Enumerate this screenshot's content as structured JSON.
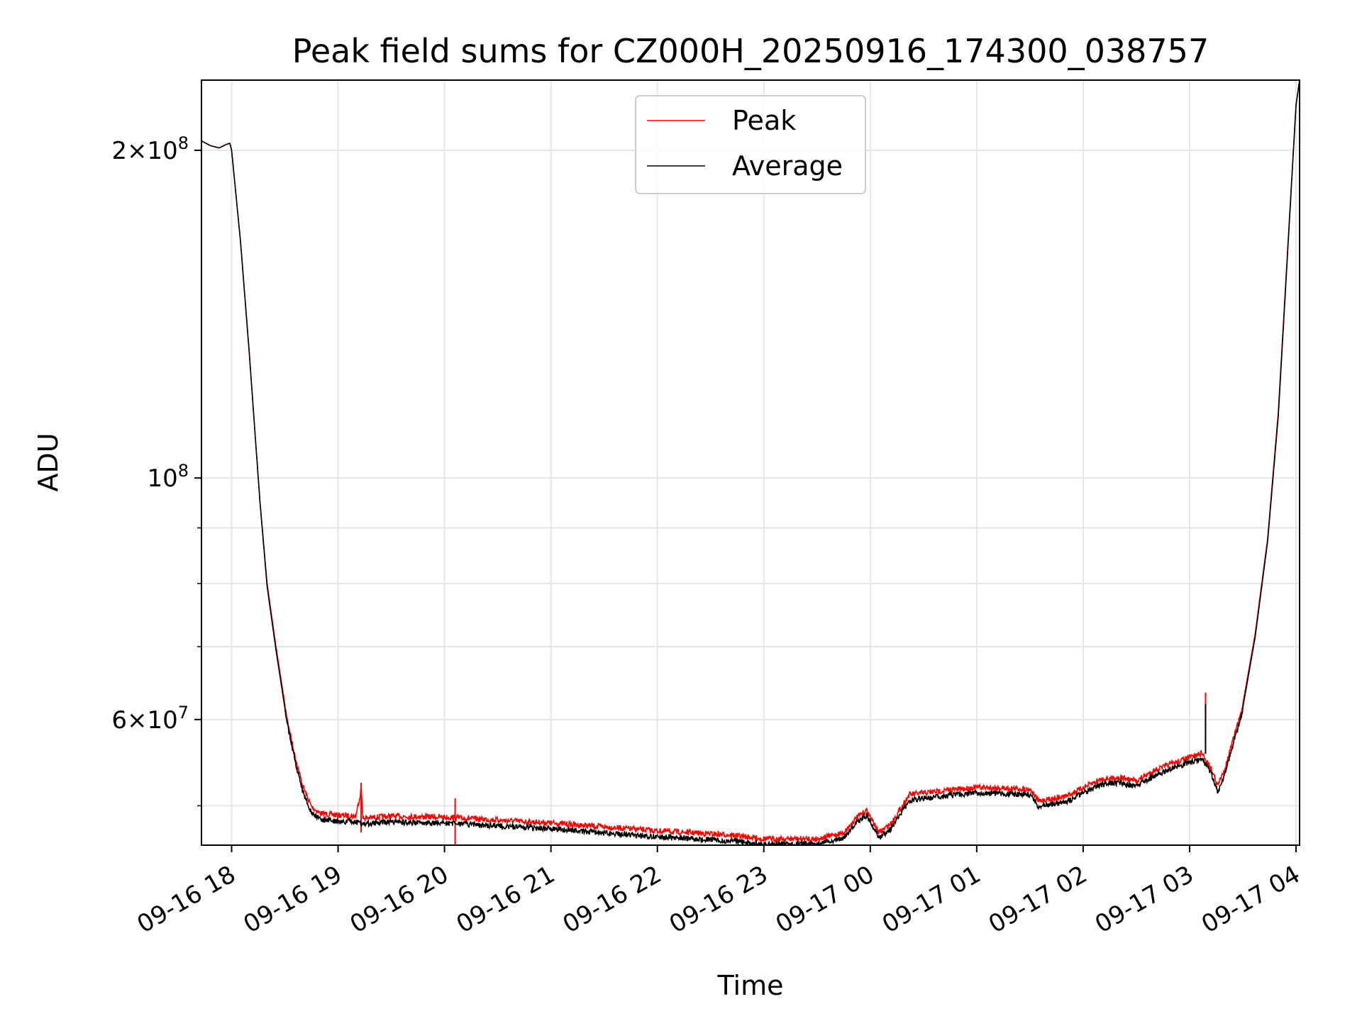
{
  "chart_data": {
    "type": "line",
    "title": "Peak field sums for CZ000H_20250916_174300_038757",
    "xlabel": "Time",
    "ylabel": "ADU",
    "yscale": "log",
    "ylim": [
      46000000,
      232000000
    ],
    "xlim": [
      "2025-09-16 17:43",
      "2025-09-17 04:02"
    ],
    "grid": true,
    "legend_position": "top-center",
    "x_ticks": [
      {
        "t": "2025-09-16 18:00",
        "label": "09-16 18"
      },
      {
        "t": "2025-09-16 19:00",
        "label": "09-16 19"
      },
      {
        "t": "2025-09-16 20:00",
        "label": "09-16 20"
      },
      {
        "t": "2025-09-16 21:00",
        "label": "09-16 21"
      },
      {
        "t": "2025-09-16 22:00",
        "label": "09-16 22"
      },
      {
        "t": "2025-09-16 23:00",
        "label": "09-16 23"
      },
      {
        "t": "2025-09-17 00:00",
        "label": "09-17 00"
      },
      {
        "t": "2025-09-17 01:00",
        "label": "09-17 01"
      },
      {
        "t": "2025-09-17 02:00",
        "label": "09-17 02"
      },
      {
        "t": "2025-09-17 03:00",
        "label": "09-17 03"
      },
      {
        "t": "2025-09-17 04:00",
        "label": "09-17 04"
      }
    ],
    "y_major_ticks": [
      {
        "value": 60000000,
        "mantissa": "6",
        "exponent": "7"
      },
      {
        "value": 100000000,
        "mantissa": "",
        "exponent": "8"
      },
      {
        "value": 200000000,
        "mantissa": "2",
        "exponent": "8"
      }
    ],
    "y_minor_ticks": [
      50000000,
      70000000,
      80000000,
      90000000
    ],
    "series": [
      {
        "name": "Peak",
        "color": "#ff0000",
        "noise": 0.012,
        "points": [
          [
            "2025-09-16 17:43",
            204000000
          ],
          [
            "2025-09-16 17:48",
            202000000
          ],
          [
            "2025-09-16 17:53",
            201000000
          ],
          [
            "2025-09-16 17:57",
            202500000
          ],
          [
            "2025-09-16 17:59",
            203000000
          ],
          [
            "2025-09-16 18:00",
            200000000
          ],
          [
            "2025-09-16 18:05",
            165000000
          ],
          [
            "2025-09-16 18:10",
            130000000
          ],
          [
            "2025-09-16 18:15",
            100000000
          ],
          [
            "2025-09-16 18:16",
            95000000
          ],
          [
            "2025-09-16 18:20",
            80000000
          ],
          [
            "2025-09-16 18:25",
            70000000
          ],
          [
            "2025-09-16 18:30",
            62000000
          ],
          [
            "2025-09-16 18:35",
            56500000
          ],
          [
            "2025-09-16 18:40",
            52500000
          ],
          [
            "2025-09-16 18:45",
            50200000
          ],
          [
            "2025-09-16 18:50",
            49500000
          ],
          [
            "2025-09-16 19:00",
            49300000
          ],
          [
            "2025-09-16 19:10",
            49200000
          ],
          [
            "2025-09-16 19:13",
            52000000
          ],
          [
            "2025-09-16 19:14",
            49000000
          ],
          [
            "2025-09-16 19:30",
            49200000
          ],
          [
            "2025-09-16 20:00",
            49100000
          ],
          [
            "2025-09-16 20:30",
            48800000
          ],
          [
            "2025-09-16 21:00",
            48500000
          ],
          [
            "2025-09-16 21:30",
            48100000
          ],
          [
            "2025-09-16 22:00",
            47700000
          ],
          [
            "2025-09-16 22:20",
            47500000
          ],
          [
            "2025-09-16 22:40",
            47300000
          ],
          [
            "2025-09-16 23:00",
            46900000
          ],
          [
            "2025-09-16 23:30",
            46900000
          ],
          [
            "2025-09-16 23:45",
            47500000
          ],
          [
            "2025-09-16 23:52",
            49000000
          ],
          [
            "2025-09-16 23:58",
            49800000
          ],
          [
            "2025-09-17 00:05",
            47500000
          ],
          [
            "2025-09-17 00:12",
            48500000
          ],
          [
            "2025-09-17 00:22",
            51500000
          ],
          [
            "2025-09-17 00:40",
            51900000
          ],
          [
            "2025-09-17 01:00",
            52300000
          ],
          [
            "2025-09-17 01:30",
            52100000
          ],
          [
            "2025-09-17 01:35",
            50800000
          ],
          [
            "2025-09-17 01:50",
            51300000
          ],
          [
            "2025-09-17 02:10",
            53200000
          ],
          [
            "2025-09-17 02:20",
            53400000
          ],
          [
            "2025-09-17 02:30",
            53000000
          ],
          [
            "2025-09-17 02:40",
            54200000
          ],
          [
            "2025-09-17 02:50",
            55000000
          ],
          [
            "2025-09-17 03:00",
            55700000
          ],
          [
            "2025-09-17 03:07",
            56200000
          ],
          [
            "2025-09-17 03:12",
            54500000
          ],
          [
            "2025-09-17 03:16",
            52500000
          ],
          [
            "2025-09-17 03:20",
            54500000
          ],
          [
            "2025-09-17 03:25",
            58200000
          ],
          [
            "2025-09-17 03:30",
            62000000
          ],
          [
            "2025-09-17 03:37",
            72000000
          ],
          [
            "2025-09-17 03:44",
            88000000
          ],
          [
            "2025-09-17 03:50",
            115000000
          ],
          [
            "2025-09-17 03:56",
            170000000
          ],
          [
            "2025-09-17 04:00",
            220000000
          ],
          [
            "2025-09-17 04:02",
            232000000
          ]
        ],
        "spikes": [
          [
            "2025-09-16 19:13",
            52500000
          ],
          [
            "2025-09-16 20:06",
            50800000
          ],
          [
            "2025-09-17 03:09",
            63500000
          ]
        ]
      },
      {
        "name": "Average",
        "color": "#000000",
        "noise": 0.012,
        "points": [
          [
            "2025-09-16 17:43",
            204000000
          ],
          [
            "2025-09-16 17:48",
            202000000
          ],
          [
            "2025-09-16 17:53",
            201000000
          ],
          [
            "2025-09-16 17:57",
            202500000
          ],
          [
            "2025-09-16 17:59",
            203000000
          ],
          [
            "2025-09-16 18:00",
            200000000
          ],
          [
            "2025-09-16 18:05",
            165000000
          ],
          [
            "2025-09-16 18:10",
            130000000
          ],
          [
            "2025-09-16 18:15",
            100000000
          ],
          [
            "2025-09-16 18:16",
            95000000
          ],
          [
            "2025-09-16 18:20",
            79500000
          ],
          [
            "2025-09-16 18:25",
            69500000
          ],
          [
            "2025-09-16 18:30",
            61500000
          ],
          [
            "2025-09-16 18:35",
            56000000
          ],
          [
            "2025-09-16 18:40",
            51800000
          ],
          [
            "2025-09-16 18:45",
            49600000
          ],
          [
            "2025-09-16 18:50",
            48900000
          ],
          [
            "2025-09-16 19:00",
            48700000
          ],
          [
            "2025-09-16 19:10",
            48600000
          ],
          [
            "2025-09-16 19:14",
            48400000
          ],
          [
            "2025-09-16 19:30",
            48600000
          ],
          [
            "2025-09-16 20:00",
            48500000
          ],
          [
            "2025-09-16 20:30",
            48200000
          ],
          [
            "2025-09-16 21:00",
            47900000
          ],
          [
            "2025-09-16 21:30",
            47500000
          ],
          [
            "2025-09-16 22:00",
            47100000
          ],
          [
            "2025-09-16 22:20",
            46900000
          ],
          [
            "2025-09-16 22:40",
            46700000
          ],
          [
            "2025-09-16 23:00",
            46400000
          ],
          [
            "2025-09-16 23:30",
            46400000
          ],
          [
            "2025-09-16 23:45",
            47000000
          ],
          [
            "2025-09-16 23:52",
            48500000
          ],
          [
            "2025-09-16 23:58",
            49300000
          ],
          [
            "2025-09-17 00:05",
            47000000
          ],
          [
            "2025-09-17 00:12",
            48000000
          ],
          [
            "2025-09-17 00:22",
            50900000
          ],
          [
            "2025-09-17 00:40",
            51300000
          ],
          [
            "2025-09-17 01:00",
            51700000
          ],
          [
            "2025-09-17 01:30",
            51500000
          ],
          [
            "2025-09-17 01:35",
            50200000
          ],
          [
            "2025-09-17 01:50",
            50700000
          ],
          [
            "2025-09-17 02:10",
            52600000
          ],
          [
            "2025-09-17 02:20",
            52800000
          ],
          [
            "2025-09-17 02:30",
            52400000
          ],
          [
            "2025-09-17 02:40",
            53600000
          ],
          [
            "2025-09-17 02:50",
            54400000
          ],
          [
            "2025-09-17 03:00",
            55100000
          ],
          [
            "2025-09-17 03:07",
            55600000
          ],
          [
            "2025-09-17 03:12",
            53900000
          ],
          [
            "2025-09-17 03:16",
            51800000
          ],
          [
            "2025-09-17 03:20",
            53900000
          ],
          [
            "2025-09-17 03:25",
            57600000
          ],
          [
            "2025-09-17 03:30",
            61500000
          ],
          [
            "2025-09-17 03:37",
            71500000
          ],
          [
            "2025-09-17 03:44",
            87500000
          ],
          [
            "2025-09-17 03:50",
            114000000
          ],
          [
            "2025-09-17 03:56",
            169000000
          ],
          [
            "2025-09-17 04:00",
            220000000
          ],
          [
            "2025-09-17 04:02",
            232000000
          ]
        ],
        "spikes": [
          [
            "2025-09-17 03:09",
            62000000
          ]
        ]
      }
    ]
  }
}
